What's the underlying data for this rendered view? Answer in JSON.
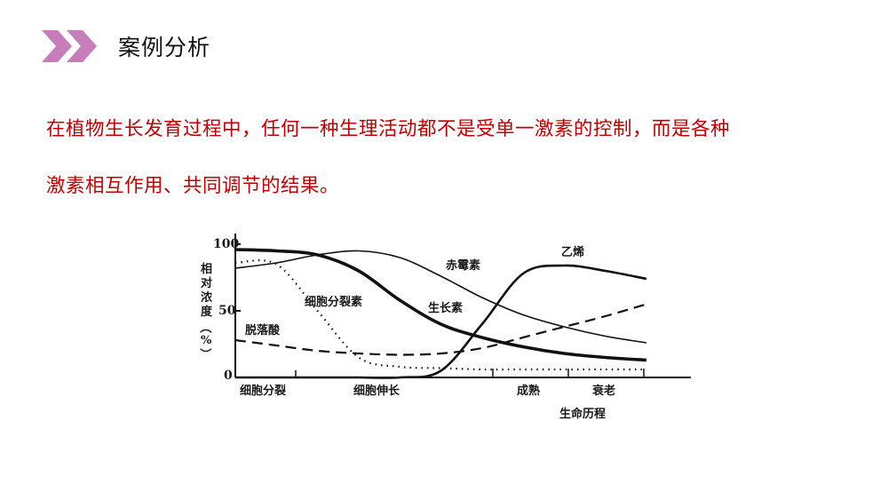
{
  "header": {
    "icon": "double-chevron-right-icon",
    "icon_color": "#c77dbb",
    "title": "案例分析"
  },
  "body_text": {
    "color": "#c00000",
    "line1": "在植物生长发育过程中，任何一种生理活动都不是受单一激素的控制，而是各种",
    "line2": "激素相互作用、共同调节的结果。"
  },
  "chart_data": {
    "type": "line",
    "title": "",
    "xlabel": "生命历程",
    "ylabel": "相对浓度（%）",
    "ylim": [
      0,
      100
    ],
    "yticks": [
      "0",
      "50",
      "100"
    ],
    "x_stage_labels": [
      "细胞分裂",
      "细胞伸长",
      "成熟",
      "衰老"
    ],
    "grid": false,
    "x": [
      0,
      10,
      20,
      30,
      40,
      50,
      60,
      70,
      80,
      90,
      100
    ],
    "series": [
      {
        "name": "生长素",
        "style": "solid-thick",
        "values": [
          96,
          95,
          92,
          80,
          58,
          40,
          30,
          23,
          18,
          15,
          13
        ]
      },
      {
        "name": "赤霉素",
        "style": "solid-thin",
        "values": [
          82,
          86,
          92,
          95,
          90,
          76,
          60,
          47,
          38,
          31,
          26
        ]
      },
      {
        "name": "细胞分裂素",
        "style": "dotted",
        "values": [
          86,
          85,
          50,
          15,
          8,
          7,
          6,
          6,
          6,
          6,
          6
        ]
      },
      {
        "name": "脱落酸",
        "style": "dashed",
        "values": [
          28,
          24,
          20,
          18,
          17,
          18,
          22,
          30,
          38,
          46,
          55
        ]
      },
      {
        "name": "乙烯",
        "style": "solid-medium",
        "values": [
          0,
          0,
          0,
          0,
          0,
          5,
          40,
          78,
          84,
          80,
          74
        ]
      }
    ],
    "labels": {
      "hormone_cytokinin": "细胞分裂素",
      "hormone_aba": "脱落酸",
      "hormone_ga": "赤霉素",
      "hormone_iaa": "生长素",
      "hormone_ethylene": "乙烯"
    }
  }
}
